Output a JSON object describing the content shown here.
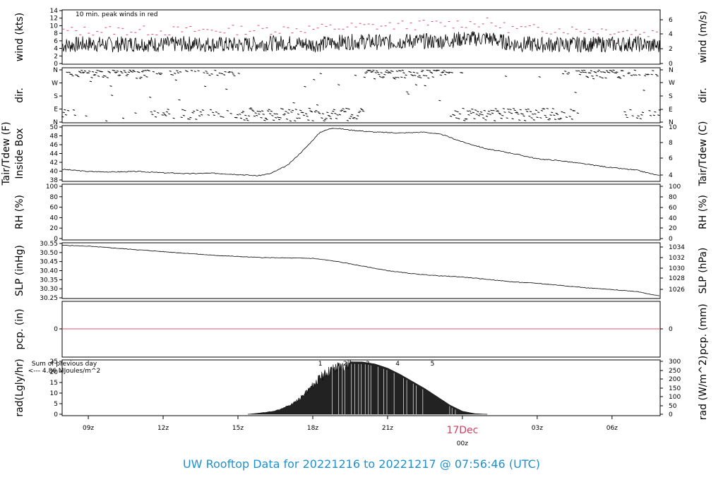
{
  "footer": {
    "title": "UW Rooftop Data for 20221216  to  20221217 @ 07:56:46  (UTC)"
  },
  "colors": {
    "peak": "#e0506e",
    "axis": "#000000",
    "footer": "#1e90d0",
    "rad_note": "#9932cc",
    "date": "#d04060"
  },
  "x_axis": {
    "ticks": [
      "09z",
      "12z",
      "15z",
      "18z",
      "21z",
      "00z",
      "03z",
      "06z"
    ],
    "tick_hours": [
      9,
      12,
      15,
      18,
      21,
      24,
      27,
      30
    ],
    "date_label": "17Dec",
    "range_hours": [
      7.95,
      31.93
    ]
  },
  "chart_data": [
    {
      "id": "wind",
      "type": "line",
      "ylabel": "wind (kts)",
      "ylabel_right": "wind (m/s)",
      "ylim": [
        0,
        14
      ],
      "yticks": [
        "0",
        "2",
        "4",
        "6",
        "8",
        "10",
        "12",
        "14"
      ],
      "yticks_right": [
        "0",
        "2",
        "4",
        "6"
      ],
      "annotation": "10 min. peak winds in red",
      "series": [
        {
          "values_x": [
            8,
            9,
            10,
            11,
            12,
            13,
            14,
            15,
            16,
            17,
            18,
            19,
            20,
            21,
            22,
            23,
            24,
            25,
            26,
            27,
            28,
            29,
            30,
            31,
            31.9
          ],
          "values_y": [
            4.8,
            5.2,
            5.0,
            5.3,
            5.0,
            5.2,
            5.1,
            4.9,
            5.3,
            5.4,
            5.0,
            5.6,
            5.8,
            5.6,
            6.0,
            5.8,
            6.5,
            6.7,
            5.2,
            5.0,
            5.0,
            5.1,
            5.1,
            5.2,
            4.5
          ]
        },
        {
          "values_x": [
            8,
            10,
            12,
            14,
            16,
            18,
            20,
            22,
            24,
            25,
            26,
            28,
            30,
            31.9
          ],
          "values_y": [
            8.5,
            8.8,
            8.6,
            8.8,
            9.0,
            9.2,
            9.8,
            10.2,
            10.6,
            10.8,
            9.2,
            9.0,
            8.8,
            8.0
          ]
        }
      ]
    },
    {
      "id": "dir",
      "type": "scatter",
      "ylabel": "dir.",
      "ylabel_right": "dir.",
      "yticks": [
        "N",
        "E",
        "S",
        "W",
        "N"
      ],
      "yticks_right": [
        "N",
        "E",
        "S",
        "W",
        "N"
      ],
      "ylim": [
        0,
        360
      ]
    },
    {
      "id": "temp",
      "type": "line",
      "ylabel": "Inside Box",
      "ylabel_outer": "Tair/Tdew (F)",
      "ylabel_right": "Tair/Tdew (C)",
      "ylim": [
        37.5,
        50
      ],
      "yticks": [
        "38",
        "40",
        "42",
        "44",
        "46",
        "48",
        "50"
      ],
      "yticks_right": [
        "4",
        "6",
        "8",
        "10"
      ],
      "series": [
        {
          "values_x": [
            8,
            9,
            10,
            11,
            12,
            13,
            14,
            15,
            15.8,
            16.3,
            17,
            17.7,
            18.3,
            18.8,
            19.5,
            20.5,
            21.5,
            22.5,
            23.2,
            24,
            25,
            26,
            27,
            28,
            29,
            30,
            31,
            31.9
          ],
          "values_y": [
            40,
            39.5,
            39.4,
            39.5,
            39.2,
            39,
            39.1,
            38.8,
            38.5,
            39,
            41,
            45,
            48.8,
            49.8,
            49.3,
            48.8,
            48.6,
            48.8,
            48.2,
            46.5,
            44.8,
            43.8,
            42.5,
            42,
            41.2,
            40.4,
            39.8,
            38.5
          ]
        }
      ]
    },
    {
      "id": "rh",
      "type": "line",
      "ylabel": "RH (%)",
      "ylabel_right": "RH (%)",
      "ylim": [
        0,
        100
      ],
      "yticks": [
        "0",
        "20",
        "40",
        "60",
        "80",
        "100"
      ],
      "yticks_right": [
        "0",
        "20",
        "40",
        "60",
        "80",
        "100"
      ]
    },
    {
      "id": "slp",
      "type": "line",
      "ylabel": "SLP (inHg)",
      "ylabel_right": "SLP (hPa)",
      "ylim": [
        30.25,
        30.55
      ],
      "yticks": [
        "30.25",
        "30.30",
        "30.35",
        "30.40",
        "30.45",
        "30.50",
        "30.55"
      ],
      "yticks_right": [
        "1026",
        "1028",
        "1030",
        "1032",
        "1034"
      ],
      "series": [
        {
          "values_x": [
            8,
            9,
            10,
            11,
            12,
            13,
            14,
            15,
            16,
            17,
            18,
            19,
            20,
            21,
            22,
            23,
            24,
            25,
            26,
            27,
            28,
            29,
            30,
            31,
            31.9
          ],
          "values_y": [
            30.54,
            30.535,
            30.525,
            30.515,
            30.505,
            30.495,
            30.485,
            30.478,
            30.472,
            30.47,
            30.468,
            30.45,
            30.425,
            30.4,
            30.383,
            30.372,
            30.365,
            30.352,
            30.338,
            30.33,
            30.318,
            30.305,
            30.295,
            30.285,
            30.26
          ]
        }
      ]
    },
    {
      "id": "pcp",
      "type": "line",
      "ylabel": "pcp. (in)",
      "ylabel_right": "pcp. (mm)",
      "yticks": [
        "0"
      ],
      "yticks_right": [
        "0"
      ],
      "series": [
        {
          "values_x": [
            7.95,
            31.93
          ],
          "values_y": [
            0,
            0
          ]
        }
      ]
    },
    {
      "id": "rad",
      "type": "area",
      "ylabel": "rad(Lgly/hr)",
      "ylabel_right": "rad (W/m^2)",
      "ylim": [
        0,
        25.8
      ],
      "yticks": [
        "0",
        "5",
        "10",
        "15",
        "20",
        "25"
      ],
      "yticks_right": [
        "0",
        "50",
        "100",
        "150",
        "200",
        "250",
        "300"
      ],
      "annotation_lines": [
        "Sum of previous day",
        "<--- 4.86 MJoules/m^2"
      ],
      "markers": [
        "1",
        "2",
        "3",
        "4",
        "5"
      ],
      "marker_x": [
        18.3,
        19.3,
        20.2,
        21.4,
        22.8
      ],
      "series": [
        {
          "values_x": [
            15.4,
            15.8,
            16.4,
            16.8,
            17.2,
            17.6,
            18.0,
            18.3,
            18.6,
            19.0,
            19.5,
            20.0,
            20.5,
            21.0,
            21.5,
            22.0,
            22.5,
            23.0,
            23.5,
            24.0,
            24.5,
            25.0
          ],
          "values_y": [
            0,
            0.5,
            1.5,
            3,
            5.5,
            9.5,
            15,
            19,
            22,
            24.5,
            25.6,
            25.5,
            24.5,
            22.5,
            19.5,
            16,
            12.5,
            8.5,
            4.5,
            1.5,
            0.3,
            0
          ]
        }
      ]
    }
  ]
}
